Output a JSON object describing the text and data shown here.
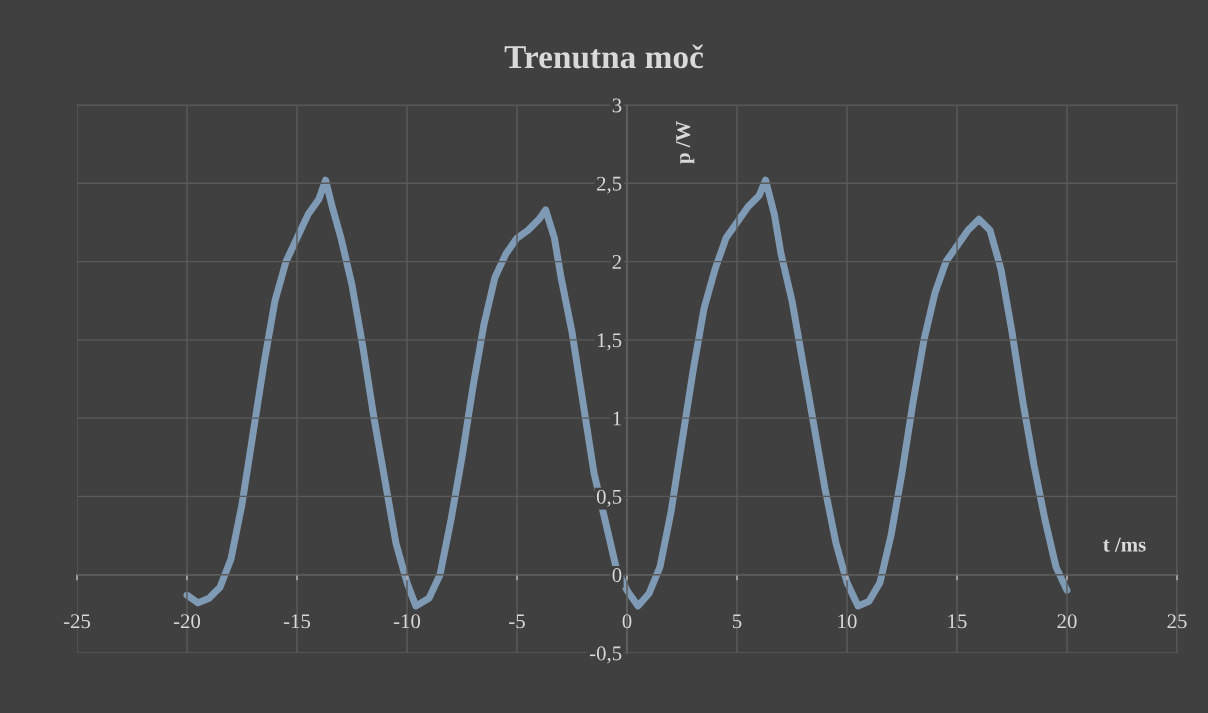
{
  "chart_data": {
    "type": "line",
    "title": "Trenutna moč",
    "xlabel": "t /ms",
    "ylabel": "p /W",
    "xlim": [
      -25,
      25
    ],
    "xticks": [
      -25,
      -20,
      -15,
      -10,
      -5,
      0,
      5,
      10,
      15,
      20,
      25
    ],
    "ylim": [
      -0.5,
      3
    ],
    "yticks": [
      {
        "value": -0.5,
        "label": "-0,5"
      },
      0,
      {
        "value": 0.5,
        "label": "0,5"
      },
      1,
      {
        "value": 1.5,
        "label": "1,5"
      },
      2,
      {
        "value": 2.5,
        "label": "2,5"
      },
      3
    ],
    "grid": true,
    "marker": "none",
    "line_style": "solid",
    "series": [
      {
        "color": "#7f9ab5",
        "x": [
          -20,
          -19.5,
          -19,
          -18.5,
          -18,
          -17.5,
          -17,
          -16.5,
          -16,
          -15.5,
          -15,
          -14.5,
          -14,
          -13.7,
          -13.4,
          -13,
          -12.5,
          -12,
          -11.5,
          -11,
          -10.5,
          -10,
          -9.6,
          -9,
          -8.5,
          -8,
          -7.5,
          -7,
          -6.5,
          -6,
          -5.5,
          -5,
          -4.5,
          -4,
          -3.7,
          -3.3,
          -3,
          -2.5,
          -2,
          -1.5,
          -1,
          -0.5,
          0,
          0.5,
          1,
          1.5,
          2,
          2.5,
          3,
          3.5,
          4,
          4.5,
          5,
          5.5,
          6,
          6.3,
          6.7,
          7,
          7.5,
          8,
          8.5,
          9,
          9.5,
          10,
          10.5,
          11,
          11.5,
          12,
          12.5,
          13,
          13.5,
          14,
          14.5,
          15,
          15.5,
          16,
          16.5,
          17,
          17.5,
          18,
          18.5,
          19,
          19.5,
          20
        ],
        "values": [
          -0.13,
          -0.18,
          -0.15,
          -0.08,
          0.1,
          0.45,
          0.9,
          1.35,
          1.75,
          2.0,
          2.15,
          2.3,
          2.4,
          2.52,
          2.35,
          2.15,
          1.85,
          1.45,
          1.0,
          0.6,
          0.2,
          -0.05,
          -0.2,
          -0.15,
          0.0,
          0.35,
          0.75,
          1.2,
          1.6,
          1.9,
          2.05,
          2.15,
          2.2,
          2.27,
          2.33,
          2.15,
          1.9,
          1.55,
          1.1,
          0.65,
          0.35,
          0.05,
          -0.1,
          -0.2,
          -0.12,
          0.05,
          0.4,
          0.85,
          1.3,
          1.7,
          1.95,
          2.15,
          2.25,
          2.35,
          2.42,
          2.52,
          2.3,
          2.05,
          1.75,
          1.35,
          0.95,
          0.55,
          0.2,
          -0.05,
          -0.2,
          -0.17,
          -0.05,
          0.25,
          0.65,
          1.1,
          1.5,
          1.8,
          2.0,
          2.1,
          2.2,
          2.27,
          2.2,
          1.95,
          1.55,
          1.1,
          0.7,
          0.35,
          0.05,
          -0.1
        ]
      }
    ]
  }
}
